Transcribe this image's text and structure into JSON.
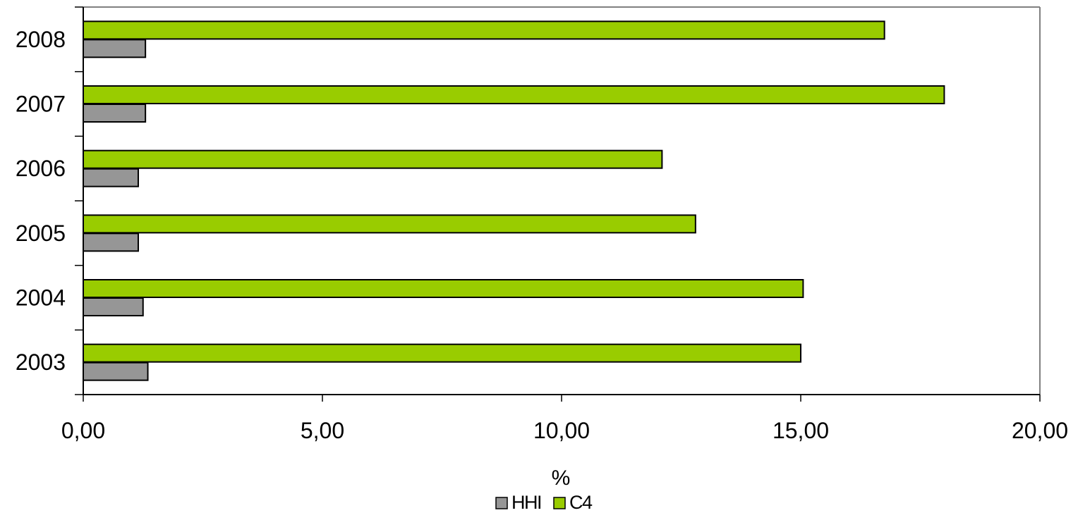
{
  "chart_data": {
    "type": "bar",
    "orientation": "horizontal",
    "categories": [
      "2003",
      "2004",
      "2005",
      "2006",
      "2007",
      "2008"
    ],
    "series": [
      {
        "name": "HHI",
        "color": "#969696",
        "values": [
          1.35,
          1.25,
          1.15,
          1.15,
          1.3,
          1.3
        ]
      },
      {
        "name": "C4",
        "color": "#99cc00",
        "values": [
          15.0,
          15.05,
          12.8,
          12.1,
          18.0,
          16.75
        ]
      }
    ],
    "x_ticks": [
      "0,00",
      "5,00",
      "10,00",
      "15,00",
      "20,00"
    ],
    "x_tick_values": [
      0,
      5,
      10,
      15,
      20
    ],
    "xlim": [
      0,
      20
    ],
    "xlabel": "%",
    "ylabel": "",
    "title": "",
    "grid": false,
    "legend_position": "bottom-center",
    "frame_color": "#808080"
  }
}
